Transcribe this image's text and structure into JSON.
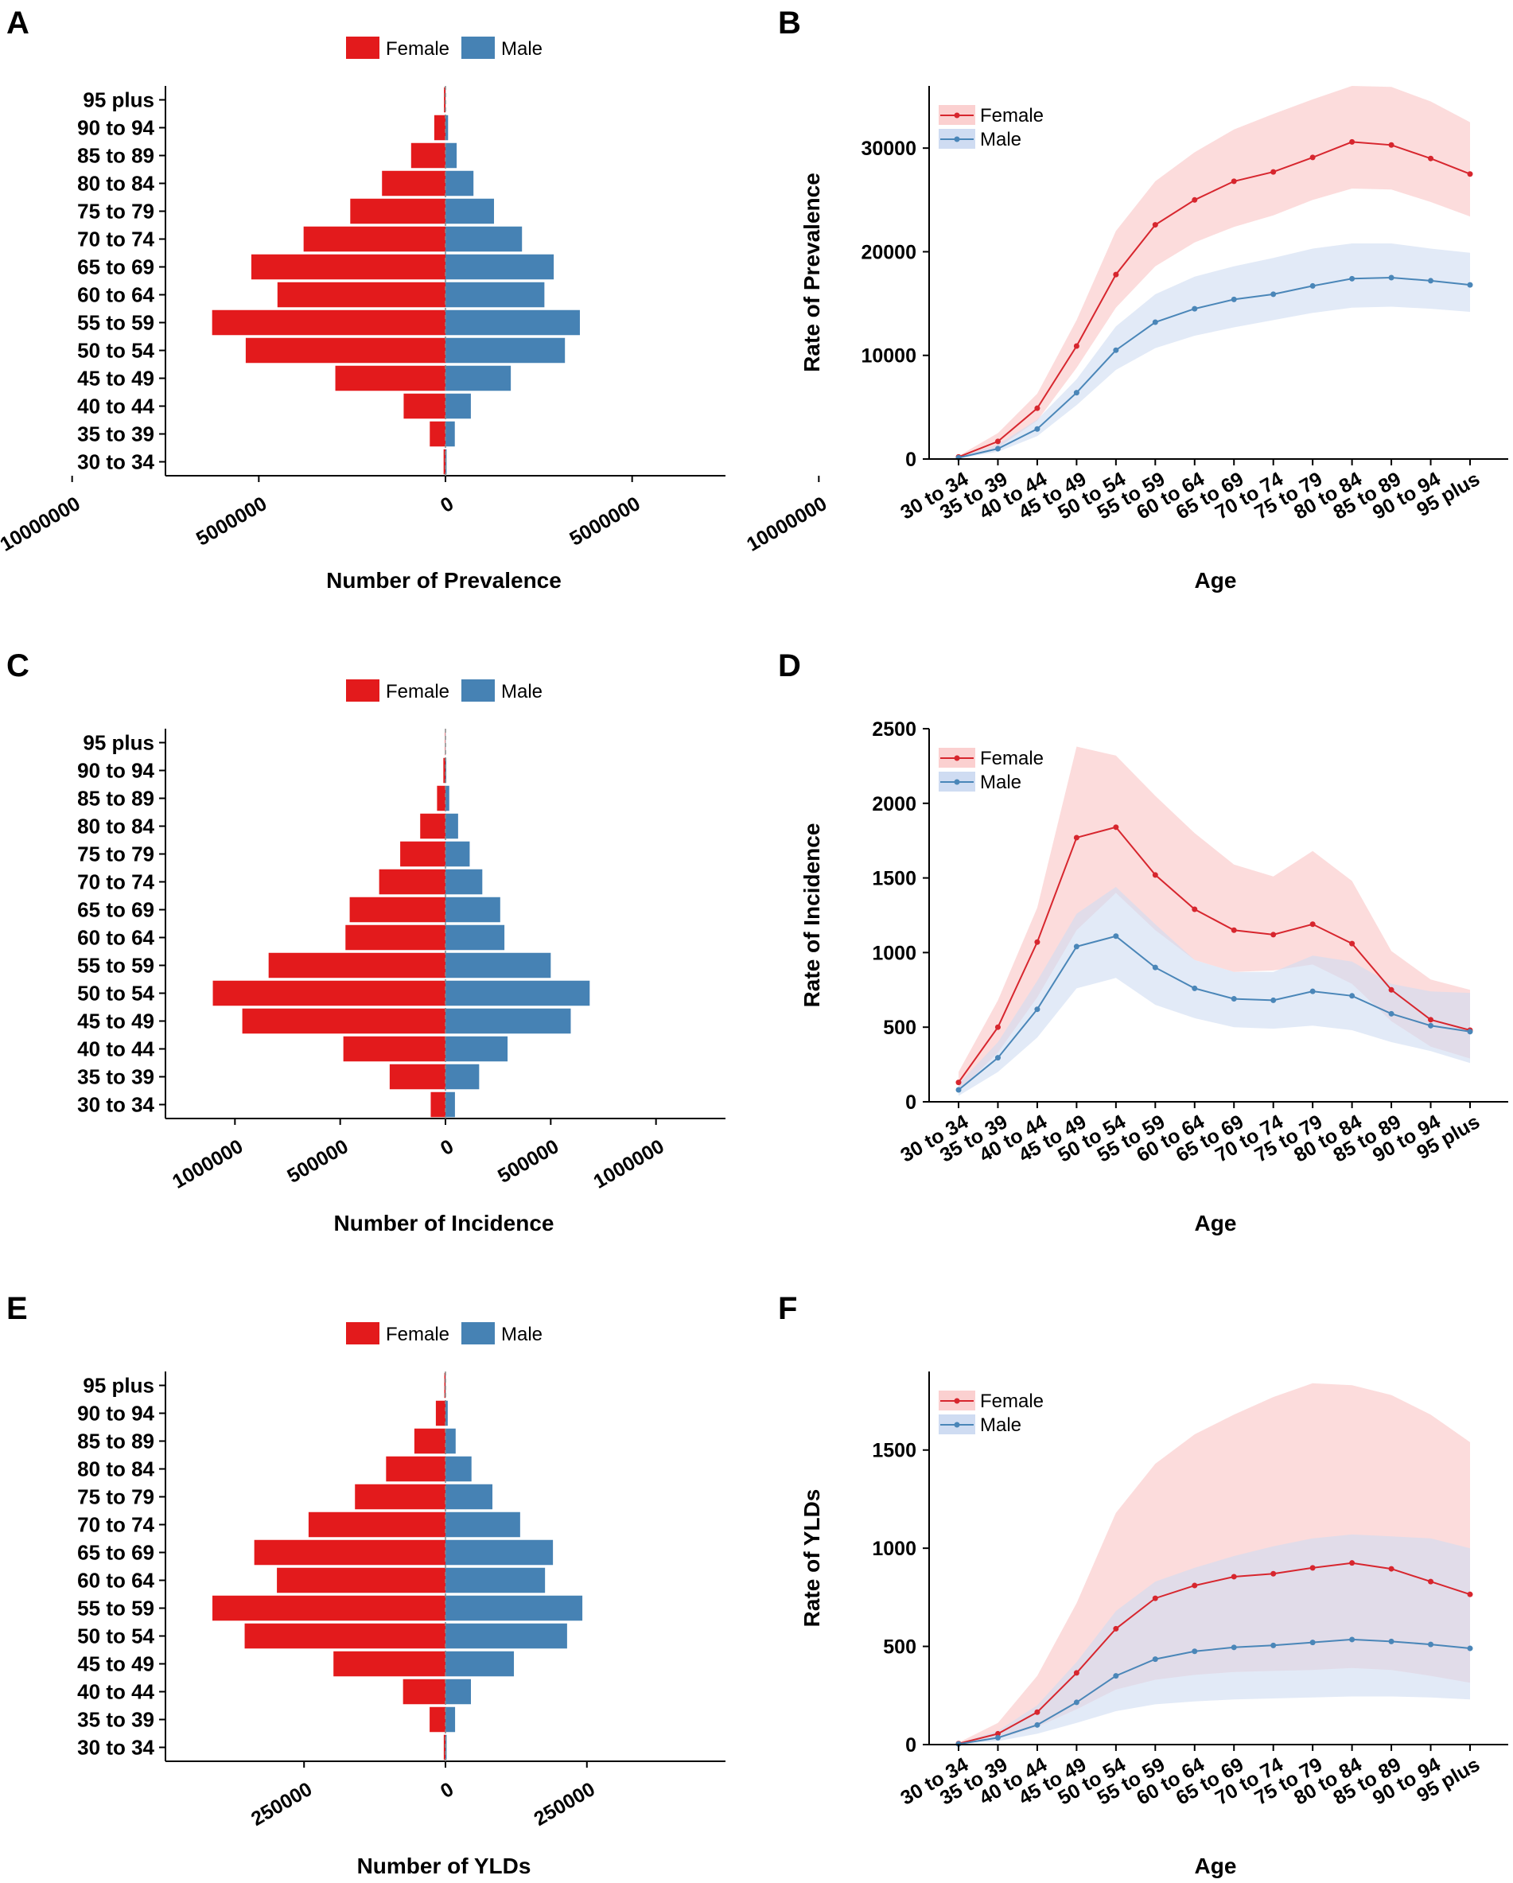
{
  "figure": {
    "title": ""
  },
  "colors": {
    "female": "#e31a1c",
    "male": "#4682b4",
    "female_line": "#d7262e",
    "male_line": "#4a86b8",
    "female_band": "#fbd0d0",
    "male_band": "#cfdcf2"
  },
  "legend": {
    "female": "Female",
    "male": "Male"
  },
  "chart_data": [
    {
      "id": "A",
      "panel_label": "A",
      "type": "bar",
      "orientation": "horizontal-pyramid",
      "title": "",
      "xlabel": "Number of Prevalence",
      "ylabel": "",
      "categories": [
        "30 to 34",
        "35 to 39",
        "40 to 44",
        "45 to 49",
        "50 to 54",
        "55 to 59",
        "60 to 64",
        "65 to 69",
        "70 to 74",
        "75 to 79",
        "80 to 84",
        "85 to 89",
        "90 to 94",
        "95 plus"
      ],
      "series": [
        {
          "name": "Female",
          "values": [
            50000,
            420000,
            1120000,
            2950000,
            5350000,
            6250000,
            4500000,
            5200000,
            3800000,
            2550000,
            1700000,
            920000,
            300000,
            40000
          ]
        },
        {
          "name": "Male",
          "values": [
            30000,
            250000,
            680000,
            1750000,
            3200000,
            3600000,
            2650000,
            2900000,
            2050000,
            1300000,
            750000,
            300000,
            70000,
            5000
          ]
        }
      ],
      "xlim": [
        -7500000,
        7500000
      ],
      "xticks": [
        -10000000,
        -5000000,
        0,
        5000000,
        10000000
      ],
      "xtick_labels": [
        "10000000",
        "5000000",
        "0",
        "5000000",
        "10000000"
      ],
      "legend_position": "top"
    },
    {
      "id": "B",
      "panel_label": "B",
      "type": "line",
      "title": "",
      "xlabel": "Age",
      "ylabel": "Rate of Prevalence",
      "categories": [
        "30 to 34",
        "35 to 39",
        "40 to 44",
        "45 to 49",
        "50 to 54",
        "55 to 59",
        "60 to 64",
        "65 to 69",
        "70 to 74",
        "75 to 79",
        "80 to 84",
        "85 to 89",
        "90 to 94",
        "95 plus"
      ],
      "series": [
        {
          "name": "Female",
          "values": [
            200,
            1700,
            4900,
            10900,
            17800,
            22600,
            25000,
            26800,
            27700,
            29100,
            30600,
            30300,
            29000,
            27500
          ],
          "lower": [
            100,
            1100,
            3700,
            8800,
            14600,
            18600,
            20900,
            22400,
            23500,
            25000,
            26100,
            26000,
            24800,
            23400
          ],
          "upper": [
            300,
            2500,
            6300,
            13400,
            22000,
            26800,
            29600,
            31800,
            33300,
            34700,
            36000,
            35900,
            34500,
            32500
          ]
        },
        {
          "name": "Male",
          "values": [
            120,
            1000,
            2900,
            6400,
            10500,
            13200,
            14500,
            15400,
            15900,
            16700,
            17400,
            17500,
            17200,
            16800
          ],
          "lower": [
            60,
            700,
            2200,
            5200,
            8600,
            10700,
            11900,
            12700,
            13400,
            14100,
            14600,
            14700,
            14500,
            14200
          ],
          "upper": [
            200,
            1400,
            3800,
            7700,
            12800,
            15900,
            17600,
            18600,
            19400,
            20300,
            20800,
            20800,
            20300,
            19900
          ]
        }
      ],
      "ylim": [
        0,
        36000
      ],
      "yticks": [
        0,
        10000,
        20000,
        30000
      ],
      "legend_position": "top-left"
    },
    {
      "id": "C",
      "panel_label": "C",
      "type": "bar",
      "orientation": "horizontal-pyramid",
      "title": "",
      "xlabel": "Number of Incidence",
      "ylabel": "",
      "categories": [
        "30 to 34",
        "35 to 39",
        "40 to 44",
        "45 to 49",
        "50 to 54",
        "55 to 59",
        "60 to 64",
        "65 to 69",
        "70 to 74",
        "75 to 79",
        "80 to 84",
        "85 to 89",
        "90 to 94",
        "95 plus"
      ],
      "series": [
        {
          "name": "Female",
          "values": [
            70000,
            265000,
            485000,
            965000,
            1105000,
            840000,
            475000,
            455000,
            315000,
            215000,
            120000,
            40000,
            10000,
            2000
          ]
        },
        {
          "name": "Male",
          "values": [
            45000,
            160000,
            295000,
            595000,
            685000,
            500000,
            280000,
            260000,
            175000,
            115000,
            60000,
            18000,
            4000,
            1000
          ]
        }
      ],
      "xlim": [
        -1330000,
        1330000
      ],
      "xticks": [
        -1000000,
        -500000,
        0,
        500000,
        1000000
      ],
      "xtick_labels": [
        "1000000",
        "500000",
        "0",
        "500000",
        "1000000"
      ],
      "legend_position": "top"
    },
    {
      "id": "D",
      "panel_label": "D",
      "type": "line",
      "title": "",
      "xlabel": "Age",
      "ylabel": "Rate of Incidence",
      "categories": [
        "30 to 34",
        "35 to 39",
        "40 to 44",
        "45 to 49",
        "50 to 54",
        "55 to 59",
        "60 to 64",
        "65 to 69",
        "70 to 74",
        "75 to 79",
        "80 to 84",
        "85 to 89",
        "90 to 94",
        "95 plus"
      ],
      "series": [
        {
          "name": "Female",
          "values": [
            130,
            500,
            1070,
            1770,
            1840,
            1520,
            1290,
            1150,
            1120,
            1190,
            1060,
            750,
            550,
            480
          ],
          "lower": [
            70,
            330,
            700,
            1150,
            1400,
            1150,
            950,
            870,
            880,
            920,
            790,
            540,
            370,
            290
          ],
          "upper": [
            200,
            680,
            1300,
            2380,
            2320,
            2050,
            1800,
            1590,
            1510,
            1680,
            1480,
            1010,
            820,
            750
          ]
        },
        {
          "name": "Male",
          "values": [
            80,
            295,
            620,
            1040,
            1110,
            900,
            760,
            690,
            680,
            740,
            710,
            590,
            510,
            470
          ],
          "lower": [
            40,
            200,
            430,
            760,
            830,
            650,
            560,
            500,
            490,
            510,
            480,
            400,
            340,
            260
          ],
          "upper": [
            120,
            400,
            810,
            1260,
            1440,
            1190,
            950,
            870,
            870,
            980,
            940,
            790,
            740,
            730
          ]
        }
      ],
      "ylim": [
        0,
        2500
      ],
      "yticks": [
        0,
        500,
        1000,
        1500,
        2000,
        2500
      ],
      "legend_position": "top-left"
    },
    {
      "id": "E",
      "panel_label": "E",
      "type": "bar",
      "orientation": "horizontal-pyramid",
      "title": "",
      "xlabel": "Number of YLDs",
      "ylabel": "",
      "categories": [
        "30 to 34",
        "35 to 39",
        "40 to 44",
        "45 to 49",
        "50 to 54",
        "55 to 59",
        "60 to 64",
        "65 to 69",
        "70 to 74",
        "75 to 79",
        "80 to 84",
        "85 to 89",
        "90 to 94",
        "95 plus"
      ],
      "series": [
        {
          "name": "Female",
          "values": [
            3000,
            28000,
            75000,
            198000,
            355000,
            412000,
            298000,
            338000,
            242000,
            160000,
            105000,
            55000,
            17000,
            2000
          ]
        },
        {
          "name": "Male",
          "values": [
            2000,
            17000,
            45000,
            121000,
            215000,
            242000,
            176000,
            190000,
            132000,
            83000,
            46000,
            18000,
            4000,
            500
          ]
        }
      ],
      "xlim": [
        -495000,
        495000
      ],
      "xticks": [
        -250000,
        0,
        250000
      ],
      "xtick_labels": [
        "250000",
        "0",
        "250000"
      ],
      "legend_position": "top"
    },
    {
      "id": "F",
      "panel_label": "F",
      "type": "line",
      "title": "",
      "xlabel": "Age",
      "ylabel": "Rate of YLDs",
      "categories": [
        "30 to 34",
        "35 to 39",
        "40 to 44",
        "45 to 49",
        "50 to 54",
        "55 to 59",
        "60 to 64",
        "65 to 69",
        "70 to 74",
        "75 to 79",
        "80 to 84",
        "85 to 89",
        "90 to 94",
        "95 plus"
      ],
      "series": [
        {
          "name": "Female",
          "values": [
            5,
            55,
            165,
            365,
            590,
            745,
            810,
            855,
            870,
            900,
            925,
            895,
            830,
            765
          ],
          "lower": [
            2,
            30,
            90,
            180,
            280,
            330,
            355,
            370,
            375,
            380,
            390,
            380,
            350,
            315
          ],
          "upper": [
            10,
            110,
            350,
            720,
            1180,
            1430,
            1580,
            1680,
            1770,
            1840,
            1830,
            1780,
            1680,
            1540
          ]
        },
        {
          "name": "Male",
          "values": [
            3,
            35,
            100,
            215,
            350,
            435,
            475,
            495,
            505,
            520,
            535,
            525,
            510,
            490
          ],
          "lower": [
            1,
            18,
            55,
            110,
            170,
            205,
            220,
            230,
            235,
            240,
            245,
            245,
            240,
            230
          ],
          "upper": [
            6,
            70,
            200,
            420,
            680,
            830,
            900,
            960,
            1010,
            1050,
            1070,
            1060,
            1050,
            1000
          ]
        }
      ],
      "ylim": [
        0,
        1900
      ],
      "yticks": [
        0,
        500,
        1000,
        1500
      ],
      "legend_position": "top-left"
    }
  ]
}
